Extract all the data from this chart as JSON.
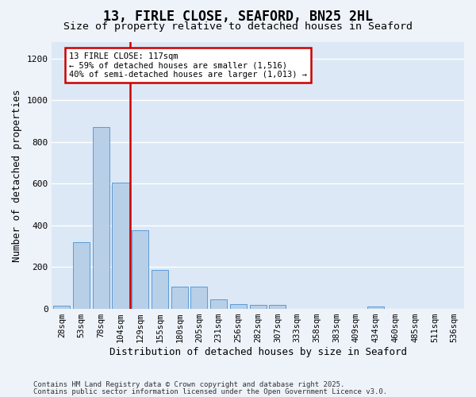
{
  "title": "13, FIRLE CLOSE, SEAFORD, BN25 2HL",
  "subtitle": "Size of property relative to detached houses in Seaford",
  "xlabel": "Distribution of detached houses by size in Seaford",
  "ylabel": "Number of detached properties",
  "categories": [
    "28sqm",
    "53sqm",
    "78sqm",
    "104sqm",
    "129sqm",
    "155sqm",
    "180sqm",
    "205sqm",
    "231sqm",
    "256sqm",
    "282sqm",
    "307sqm",
    "333sqm",
    "358sqm",
    "383sqm",
    "409sqm",
    "434sqm",
    "460sqm",
    "485sqm",
    "511sqm",
    "536sqm"
  ],
  "values": [
    14,
    320,
    870,
    605,
    375,
    185,
    105,
    105,
    47,
    22,
    18,
    18,
    0,
    0,
    0,
    0,
    10,
    0,
    0,
    0,
    0
  ],
  "bar_color": "#b8cfe8",
  "bar_edge_color": "#5b9bd5",
  "vline_color": "#cc0000",
  "annotation_text_line1": "13 FIRLE CLOSE: 117sqm",
  "annotation_text_line2": "← 59% of detached houses are smaller (1,516)",
  "annotation_text_line3": "40% of semi-detached houses are larger (1,013) →",
  "ylim": [
    0,
    1280
  ],
  "yticks": [
    0,
    200,
    400,
    600,
    800,
    1000,
    1200
  ],
  "bg_color": "#dce8f5",
  "fig_bg_color": "#eef3fa",
  "footer_line1": "Contains HM Land Registry data © Crown copyright and database right 2025.",
  "footer_line2": "Contains public sector information licensed under the Open Government Licence v3.0."
}
